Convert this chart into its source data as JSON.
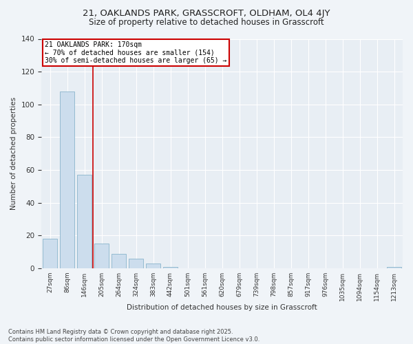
{
  "title1": "21, OAKLANDS PARK, GRASSCROFT, OLDHAM, OL4 4JY",
  "title2": "Size of property relative to detached houses in Grasscroft",
  "xlabel": "Distribution of detached houses by size in Grasscroft",
  "ylabel": "Number of detached properties",
  "categories": [
    "27sqm",
    "86sqm",
    "146sqm",
    "205sqm",
    "264sqm",
    "324sqm",
    "383sqm",
    "442sqm",
    "501sqm",
    "561sqm",
    "620sqm",
    "679sqm",
    "739sqm",
    "798sqm",
    "857sqm",
    "917sqm",
    "976sqm",
    "1035sqm",
    "1094sqm",
    "1154sqm",
    "1213sqm"
  ],
  "values": [
    18,
    108,
    57,
    15,
    9,
    6,
    3,
    1,
    0,
    0,
    0,
    0,
    0,
    0,
    0,
    0,
    0,
    0,
    0,
    0,
    1
  ],
  "bar_color": "#ccdded",
  "bar_edge_color": "#8ab4cc",
  "property_line_x": 2.5,
  "property_label": "21 OAKLANDS PARK: 170sqm",
  "annotation_line1": "← 70% of detached houses are smaller (154)",
  "annotation_line2": "30% of semi-detached houses are larger (65) →",
  "annotation_box_color": "#ffffff",
  "annotation_box_edge_color": "#cc0000",
  "line_color": "#cc0000",
  "footer1": "Contains HM Land Registry data © Crown copyright and database right 2025.",
  "footer2": "Contains public sector information licensed under the Open Government Licence v3.0.",
  "bg_color": "#f0f4f8",
  "plot_bg_color": "#e8eef4",
  "ylim": [
    0,
    140
  ],
  "figsize": [
    6.0,
    5.0
  ],
  "dpi": 100
}
